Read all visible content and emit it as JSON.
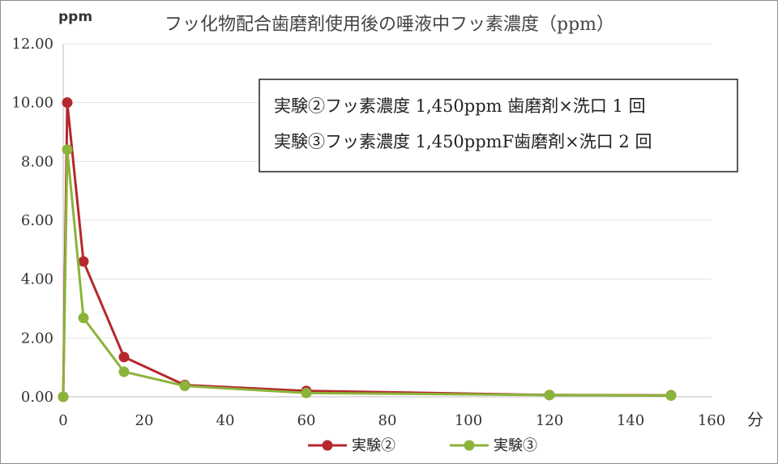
{
  "chart_data": {
    "type": "line",
    "title": "フッ化物配合歯磨剤使用後の唾液中フッ素濃度（ppm）",
    "y_unit": "ppm",
    "x_unit": "分",
    "xlim": [
      0,
      160
    ],
    "ylim": [
      0,
      12
    ],
    "x_ticks": [
      "0",
      "20",
      "40",
      "60",
      "80",
      "100",
      "120",
      "140",
      "160"
    ],
    "y_ticks": [
      "0.00",
      "2.00",
      "4.00",
      "6.00",
      "8.00",
      "10.00",
      "12.00"
    ],
    "grid": "horizontal",
    "legend_position": "bottom",
    "annotations": [
      "実験②フッ素濃度 1,450ppm 歯磨剤×洗口 1 回",
      "実験③フッ素濃度 1,450ppmF歯磨剤×洗口 2 回"
    ],
    "series": [
      {
        "name": "実験②",
        "color": "#b5282e",
        "x": [
          0,
          1,
          5,
          15,
          30,
          60,
          120,
          150
        ],
        "y": [
          0,
          10.0,
          4.6,
          1.35,
          0.4,
          0.2,
          0.06,
          0.05
        ]
      },
      {
        "name": "実験③",
        "color": "#8cb33a",
        "x": [
          0,
          1,
          5,
          15,
          30,
          60,
          120,
          150
        ],
        "y": [
          0,
          8.4,
          2.68,
          0.85,
          0.37,
          0.13,
          0.06,
          0.04
        ]
      }
    ]
  }
}
